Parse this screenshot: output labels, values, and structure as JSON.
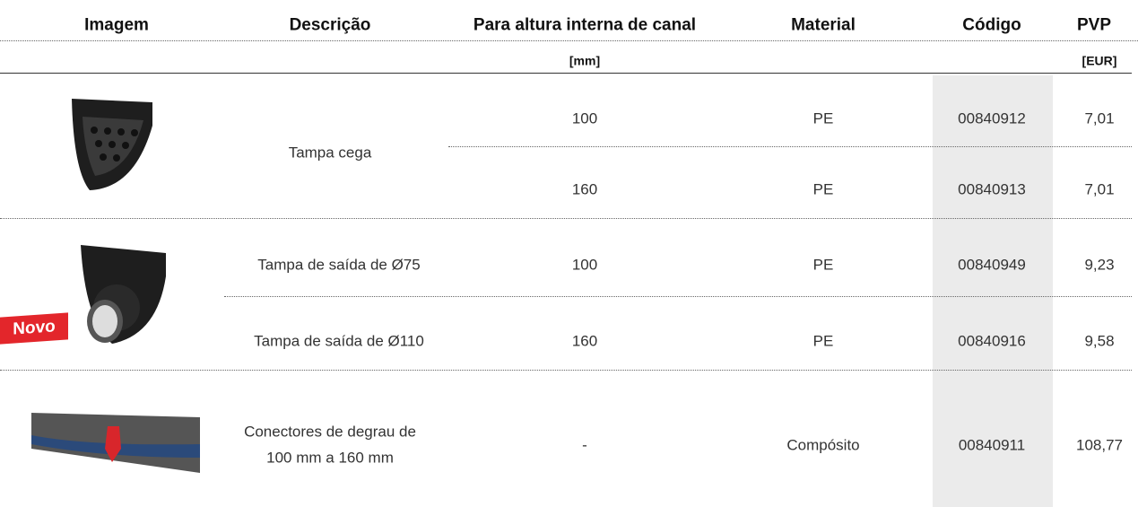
{
  "table": {
    "headers": [
      "Imagem",
      "Descrição",
      "Para altura interna de canal",
      "Material",
      "Código",
      "PVP"
    ],
    "units": {
      "height": "[mm]",
      "price": "[EUR]"
    },
    "groups": [
      {
        "description": "Tampa cega",
        "items": [
          {
            "height": "100",
            "material": "PE",
            "code": "00840912",
            "price": "7,01"
          },
          {
            "height": "160",
            "material": "PE",
            "code": "00840913",
            "price": "7,01"
          }
        ]
      },
      {
        "badge": "Novo",
        "items": [
          {
            "description": "Tampa de saída de Ø75",
            "height": "100",
            "material": "PE",
            "code": "00840949",
            "price": "9,23"
          },
          {
            "description": "Tampa de saída de Ø110",
            "height": "160",
            "material": "PE",
            "code": "00840916",
            "price": "9,58"
          }
        ]
      },
      {
        "description": [
          "Conectores de degrau de",
          "100 mm a 160 mm"
        ],
        "items": [
          {
            "height": "-",
            "material": "Compósito",
            "code": "00840911",
            "price": "108,77"
          }
        ]
      }
    ]
  }
}
